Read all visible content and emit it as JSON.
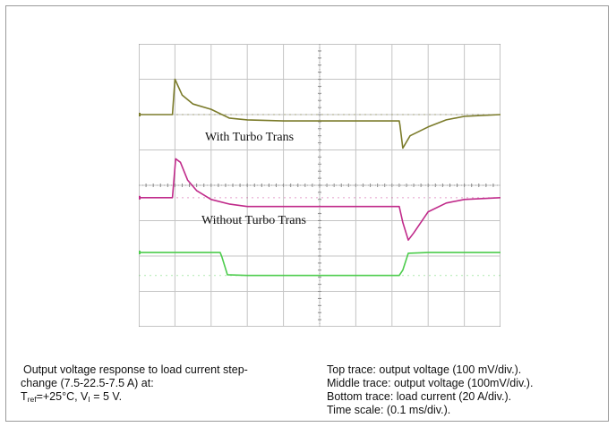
{
  "chart_data": {
    "type": "line",
    "title": "",
    "xlabel": "",
    "ylabel": "",
    "grid": true,
    "x_divisions": 10,
    "y_divisions": 8,
    "x_unit": "ms",
    "time_per_div": 0.1,
    "annotations": [
      "With Turbo Trans",
      "Without Turbo Trans"
    ],
    "series": [
      {
        "name": "",
        "color": "#7b7b2a",
        "unit": "mV",
        "per_div": 100,
        "baseline_div": 6.0,
        "points": [
          [
            0,
            0
          ],
          [
            0.93,
            0
          ],
          [
            1.0,
            1.0
          ],
          [
            1.2,
            0.55
          ],
          [
            1.5,
            0.3
          ],
          [
            2.0,
            0.15
          ],
          [
            2.5,
            -0.1
          ],
          [
            3.0,
            -0.15
          ],
          [
            4.0,
            -0.18
          ],
          [
            7.2,
            -0.18
          ],
          [
            7.22,
            -0.3
          ],
          [
            7.3,
            -0.95
          ],
          [
            7.5,
            -0.6
          ],
          [
            8.0,
            -0.35
          ],
          [
            8.5,
            -0.15
          ],
          [
            9.0,
            -0.05
          ],
          [
            10,
            0
          ]
        ]
      },
      {
        "name": "",
        "color": "#c02a8a",
        "unit": "mV",
        "per_div": 100,
        "baseline_div": 3.65,
        "points": [
          [
            0,
            0
          ],
          [
            0.93,
            0
          ],
          [
            1.02,
            1.1
          ],
          [
            1.15,
            1.0
          ],
          [
            1.35,
            0.5
          ],
          [
            1.6,
            0.2
          ],
          [
            2.0,
            -0.05
          ],
          [
            2.5,
            -0.18
          ],
          [
            3.0,
            -0.25
          ],
          [
            4.0,
            -0.25
          ],
          [
            7.2,
            -0.25
          ],
          [
            7.3,
            -0.7
          ],
          [
            7.45,
            -1.2
          ],
          [
            7.6,
            -1.0
          ],
          [
            8.0,
            -0.4
          ],
          [
            8.5,
            -0.15
          ],
          [
            9.0,
            -0.05
          ],
          [
            10,
            0
          ]
        ]
      },
      {
        "name": "",
        "color": "#4ccc4c",
        "unit": "A",
        "per_div": 20,
        "high_div": 2.1,
        "low_div": 1.45,
        "points": [
          [
            0,
            22.5
          ],
          [
            2.25,
            22.5
          ],
          [
            2.3,
            19.5
          ],
          [
            2.45,
            8.0
          ],
          [
            3.0,
            7.5
          ],
          [
            7.2,
            7.5
          ],
          [
            7.3,
            11.0
          ],
          [
            7.45,
            22.0
          ],
          [
            8.0,
            22.5
          ],
          [
            10,
            22.5
          ]
        ]
      }
    ]
  },
  "caption": {
    "left_line1": "Output voltage response to load current step-",
    "left_line2": "change (7.5-22.5-7.5 A) at:",
    "left_line3_t": "T",
    "left_line3_tsub": "ref",
    "left_line3_mid": "=+25°C, V",
    "left_line3_vsub": "I",
    "left_line3_end": " = 5 V.",
    "right": [
      "Top trace: output voltage (100 mV/div.).",
      "Middle trace: output voltage (100mV/div.).",
      "Bottom trace: load current (20 A/div.).",
      "Time scale: (0.1 ms/div.)."
    ]
  }
}
